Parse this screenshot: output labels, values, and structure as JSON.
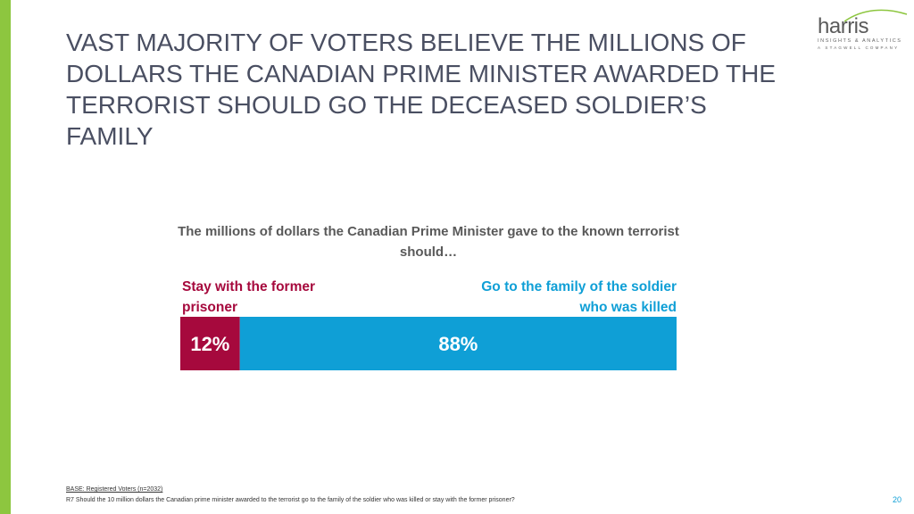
{
  "title": "VAST MAJORITY OF VOTERS BELIEVE THE MILLIONS OF DOLLARS THE CANADIAN PRIME MINISTER AWARDED THE TERRORIST SHOULD GO THE DECEASED SOLDIER’S FAMILY",
  "logo": {
    "name": "harris",
    "tagline": "INSIGHTS & ANALYTICS",
    "subtagline": "A STAGWELL COMPANY"
  },
  "chart_data": {
    "type": "bar",
    "orientation": "horizontal-stacked",
    "title": "The millions of dollars the Canadian Prime Minister gave to the known terrorist should…",
    "categories": [
      "Stay with the former prisoner",
      "Go to the family of the soldier who was killed"
    ],
    "values": [
      12,
      88
    ],
    "value_labels": [
      "12%",
      "88%"
    ],
    "unit": "%",
    "total": 100,
    "colors": [
      "#a6093d",
      "#0f9fd6"
    ],
    "legend": "none",
    "grid": false
  },
  "footer": {
    "base": "BASE: Registered Voters (n=2032)",
    "question": "R7 Should the 10 million dollars the Canadian prime minister awarded to the terrorist go to the family of the soldier who was killed or stay with the former prisoner?"
  },
  "page_number": "20",
  "colors": {
    "accent_green": "#8dc63f",
    "title_gray": "#4a4f62"
  }
}
